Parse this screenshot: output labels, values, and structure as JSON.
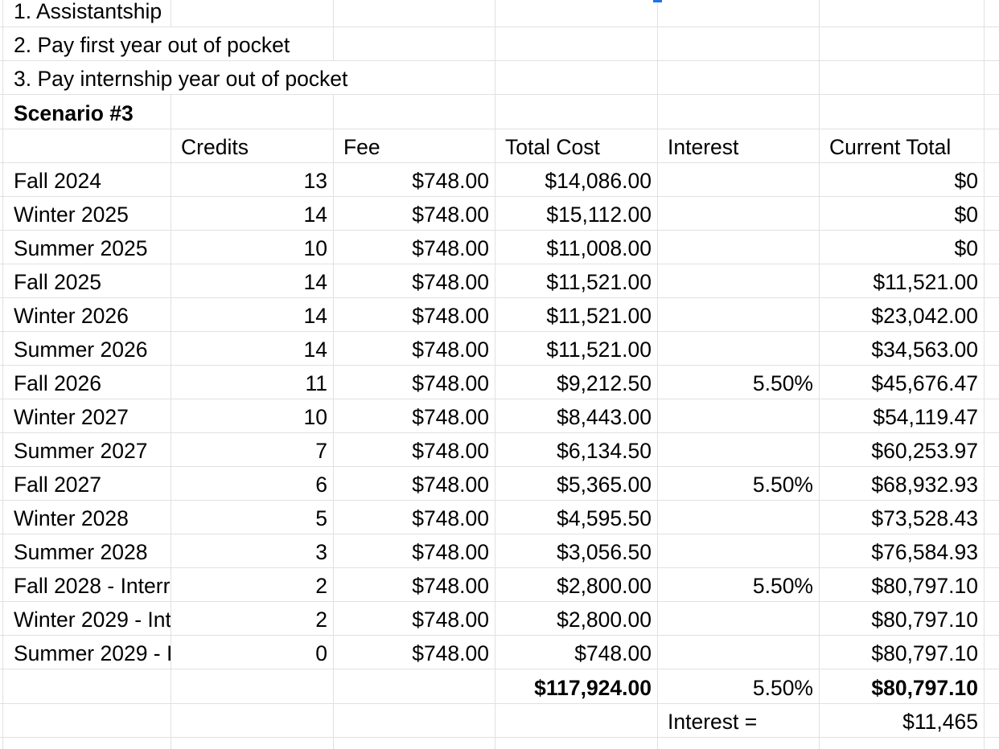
{
  "colors": {
    "background": "#ffffff",
    "grid_line": "#e1e1e1",
    "text": "#000000",
    "selection_blue": "#1a73e8"
  },
  "selection": {
    "fill_handle_note": "partial blue fill-handle square visible at top edge on Total Cost column boundary"
  },
  "notes": [
    "1. Assistantship",
    "2. Pay first year out of pocket",
    "3. Pay internship year out of pocket"
  ],
  "scenario_title": "Scenario #3",
  "headers": {
    "credits": "Credits",
    "fee": "Fee",
    "total_cost": "Total Cost",
    "interest": "Interest",
    "current_total": "Current Total"
  },
  "rows": [
    {
      "label": "Fall 2024",
      "credits": "13",
      "fee": "$748.00",
      "total_cost": "$14,086.00",
      "interest": "",
      "current_total": "$0"
    },
    {
      "label": "Winter 2025",
      "credits": "14",
      "fee": "$748.00",
      "total_cost": "$15,112.00",
      "interest": "",
      "current_total": "$0"
    },
    {
      "label": "Summer 2025",
      "credits": "10",
      "fee": "$748.00",
      "total_cost": "$11,008.00",
      "interest": "",
      "current_total": "$0"
    },
    {
      "label": "Fall 2025",
      "credits": "14",
      "fee": "$748.00",
      "total_cost": "$11,521.00",
      "interest": "",
      "current_total": "$11,521.00"
    },
    {
      "label": "Winter 2026",
      "credits": "14",
      "fee": "$748.00",
      "total_cost": "$11,521.00",
      "interest": "",
      "current_total": "$23,042.00"
    },
    {
      "label": "Summer 2026",
      "credits": "14",
      "fee": "$748.00",
      "total_cost": "$11,521.00",
      "interest": "",
      "current_total": "$34,563.00"
    },
    {
      "label": "Fall 2026",
      "credits": "11",
      "fee": "$748.00",
      "total_cost": "$9,212.50",
      "interest": "5.50%",
      "current_total": "$45,676.47"
    },
    {
      "label": "Winter 2027",
      "credits": "10",
      "fee": "$748.00",
      "total_cost": "$8,443.00",
      "interest": "",
      "current_total": "$54,119.47"
    },
    {
      "label": "Summer 2027",
      "credits": "7",
      "fee": "$748.00",
      "total_cost": "$6,134.50",
      "interest": "",
      "current_total": "$60,253.97"
    },
    {
      "label": "Fall 2027",
      "credits": "6",
      "fee": "$748.00",
      "total_cost": "$5,365.00",
      "interest": "5.50%",
      "current_total": "$68,932.93"
    },
    {
      "label": "Winter 2028",
      "credits": "5",
      "fee": "$748.00",
      "total_cost": "$4,595.50",
      "interest": "",
      "current_total": "$73,528.43"
    },
    {
      "label": "Summer 2028",
      "credits": "3",
      "fee": "$748.00",
      "total_cost": "$3,056.50",
      "interest": "",
      "current_total": "$76,584.93"
    },
    {
      "label": "Fall 2028 - Interr",
      "credits": "2",
      "fee": "$748.00",
      "total_cost": "$2,800.00",
      "interest": "5.50%",
      "current_total": "$80,797.10"
    },
    {
      "label": "Winter 2029 - Int",
      "credits": "2",
      "fee": "$748.00",
      "total_cost": "$2,800.00",
      "interest": "",
      "current_total": "$80,797.10"
    },
    {
      "label": "Summer 2029 - I",
      "credits": "0",
      "fee": "$748.00",
      "total_cost": "$748.00",
      "interest": "",
      "current_total": "$80,797.10"
    }
  ],
  "totals": {
    "total_cost": "$117,924.00",
    "interest_rate": "5.50%",
    "current_total": "$80,797.10"
  },
  "interest_summary": {
    "label": "Interest =",
    "value": "$11,465"
  }
}
